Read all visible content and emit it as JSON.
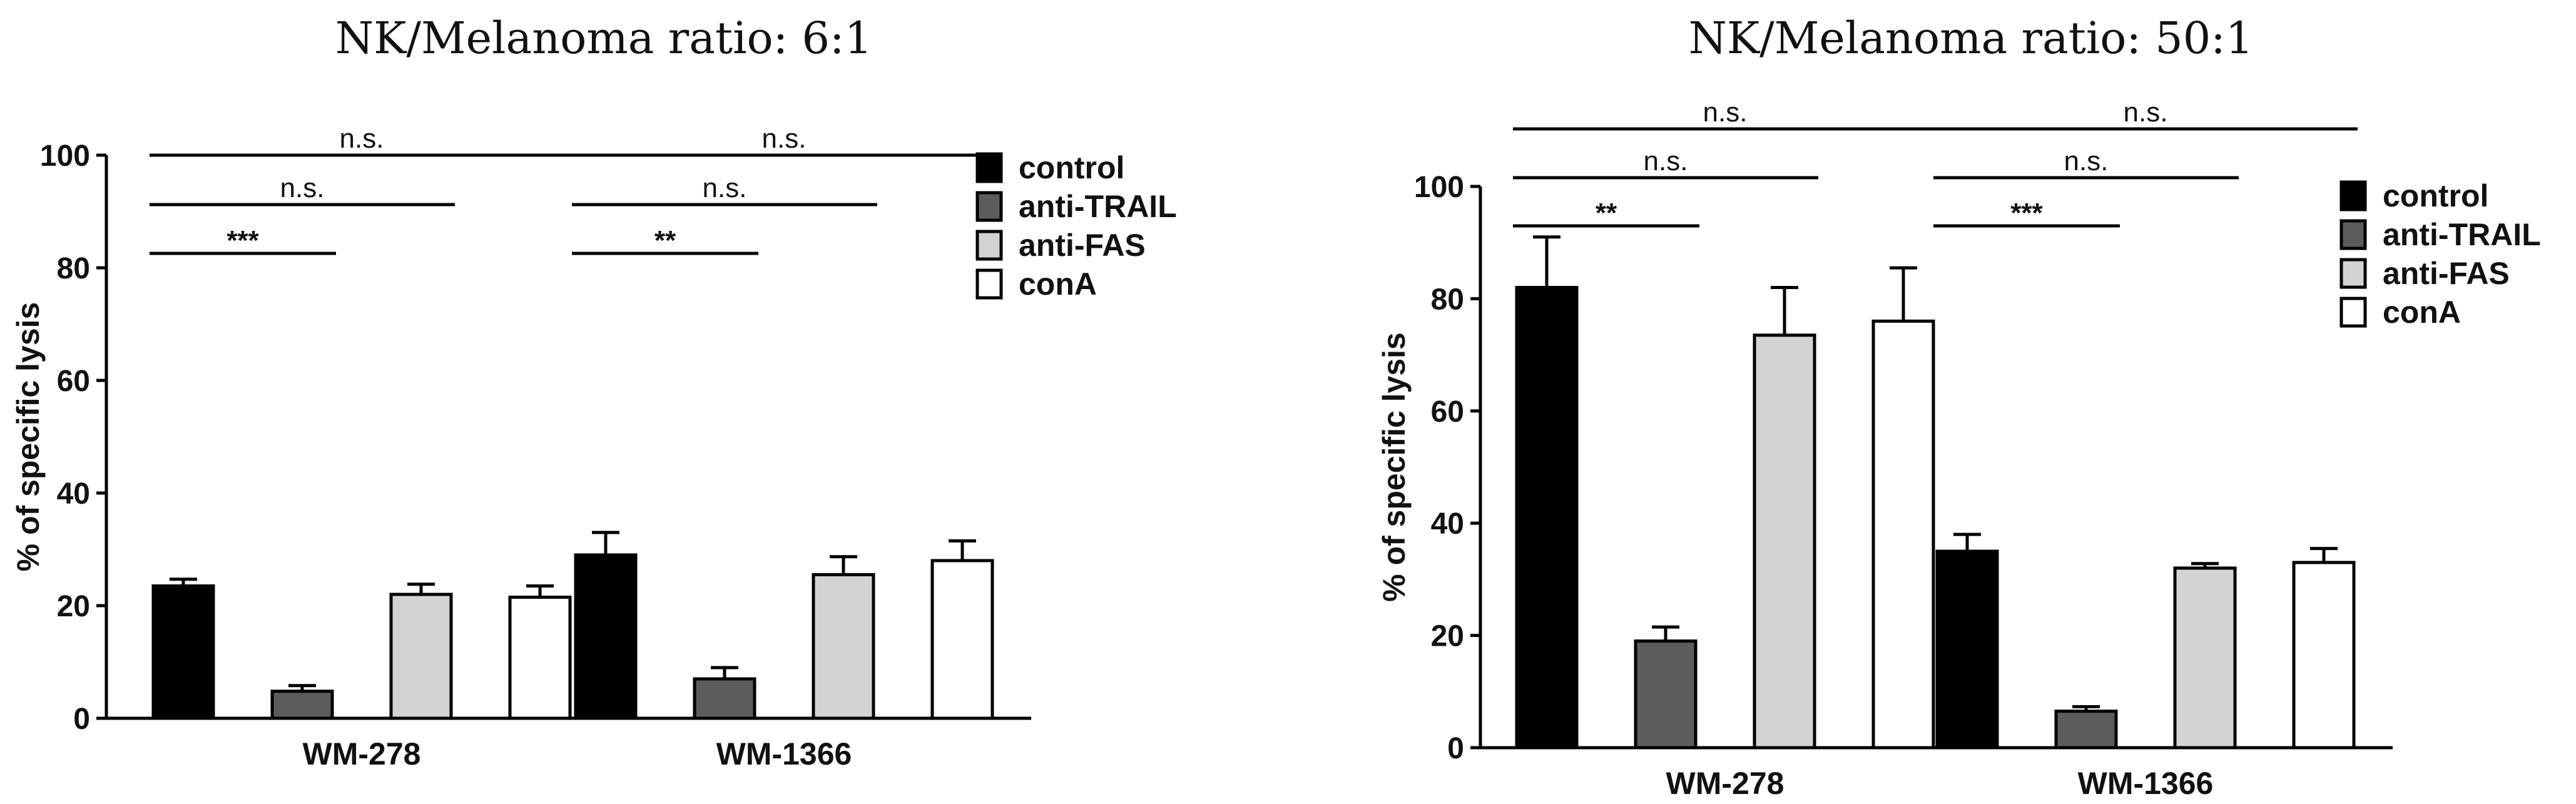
{
  "colors": {
    "control": "#000000",
    "anti-TRAIL": "#5c5c5c",
    "anti-FAS": "#d3d3d3",
    "conA": "#ffffff",
    "outline": "#000000"
  },
  "chart_data": [
    {
      "type": "bar",
      "title": "NK/Melanoma ratio: 6:1",
      "xlabel": "",
      "ylabel": "% of specific lysis",
      "ylim": [
        0,
        100
      ],
      "yticks": [
        0,
        20,
        40,
        60,
        80,
        100
      ],
      "categories": [
        "WM-278",
        "WM-1366"
      ],
      "series": [
        {
          "name": "control",
          "values": [
            23.5,
            29
          ],
          "errors": [
            1.2,
            4
          ]
        },
        {
          "name": "anti-TRAIL",
          "values": [
            4.8,
            7
          ],
          "errors": [
            1.0,
            2
          ]
        },
        {
          "name": "anti-FAS",
          "values": [
            22,
            25.5
          ],
          "errors": [
            1.8,
            3.2
          ]
        },
        {
          "name": "conA",
          "values": [
            21.5,
            28
          ],
          "errors": [
            2.0,
            3.5
          ]
        }
      ],
      "legend_position": "right",
      "annotations": [
        {
          "group": "WM-278",
          "from": "control",
          "to": "conA",
          "label": "n.s."
        },
        {
          "group": "WM-278",
          "from": "control",
          "to": "anti-FAS",
          "label": "n.s."
        },
        {
          "group": "WM-278",
          "from": "control",
          "to": "anti-TRAIL",
          "label": "***"
        },
        {
          "group": "WM-1366",
          "from": "control",
          "to": "conA",
          "label": "n.s."
        },
        {
          "group": "WM-1366",
          "from": "control",
          "to": "anti-FAS",
          "label": "n.s."
        },
        {
          "group": "WM-1366",
          "from": "control",
          "to": "anti-TRAIL",
          "label": "**"
        }
      ]
    },
    {
      "type": "bar",
      "title": "NK/Melanoma ratio: 50:1",
      "xlabel": "",
      "ylabel": "% of specific lysis",
      "ylim": [
        0,
        100
      ],
      "yticks": [
        0,
        20,
        40,
        60,
        80,
        100
      ],
      "categories": [
        "WM-278",
        "WM-1366"
      ],
      "series": [
        {
          "name": "control",
          "values": [
            82,
            35
          ],
          "errors": [
            9,
            3
          ]
        },
        {
          "name": "anti-TRAIL",
          "values": [
            19,
            6.5
          ],
          "errors": [
            2.5,
            0.8
          ]
        },
        {
          "name": "anti-FAS",
          "values": [
            73.5,
            32
          ],
          "errors": [
            8.5,
            0.8
          ]
        },
        {
          "name": "conA",
          "values": [
            76,
            33
          ],
          "errors": [
            9.5,
            2.5
          ]
        }
      ],
      "legend_position": "right",
      "annotations": [
        {
          "group": "WM-278",
          "from": "control",
          "to": "conA",
          "label": "n.s."
        },
        {
          "group": "WM-278",
          "from": "control",
          "to": "anti-FAS",
          "label": "n.s."
        },
        {
          "group": "WM-278",
          "from": "control",
          "to": "anti-TRAIL",
          "label": "**"
        },
        {
          "group": "WM-1366",
          "from": "control",
          "to": "conA",
          "label": "n.s."
        },
        {
          "group": "WM-1366",
          "from": "control",
          "to": "anti-FAS",
          "label": "n.s."
        },
        {
          "group": "WM-1366",
          "from": "control",
          "to": "anti-TRAIL",
          "label": "***"
        }
      ]
    }
  ]
}
